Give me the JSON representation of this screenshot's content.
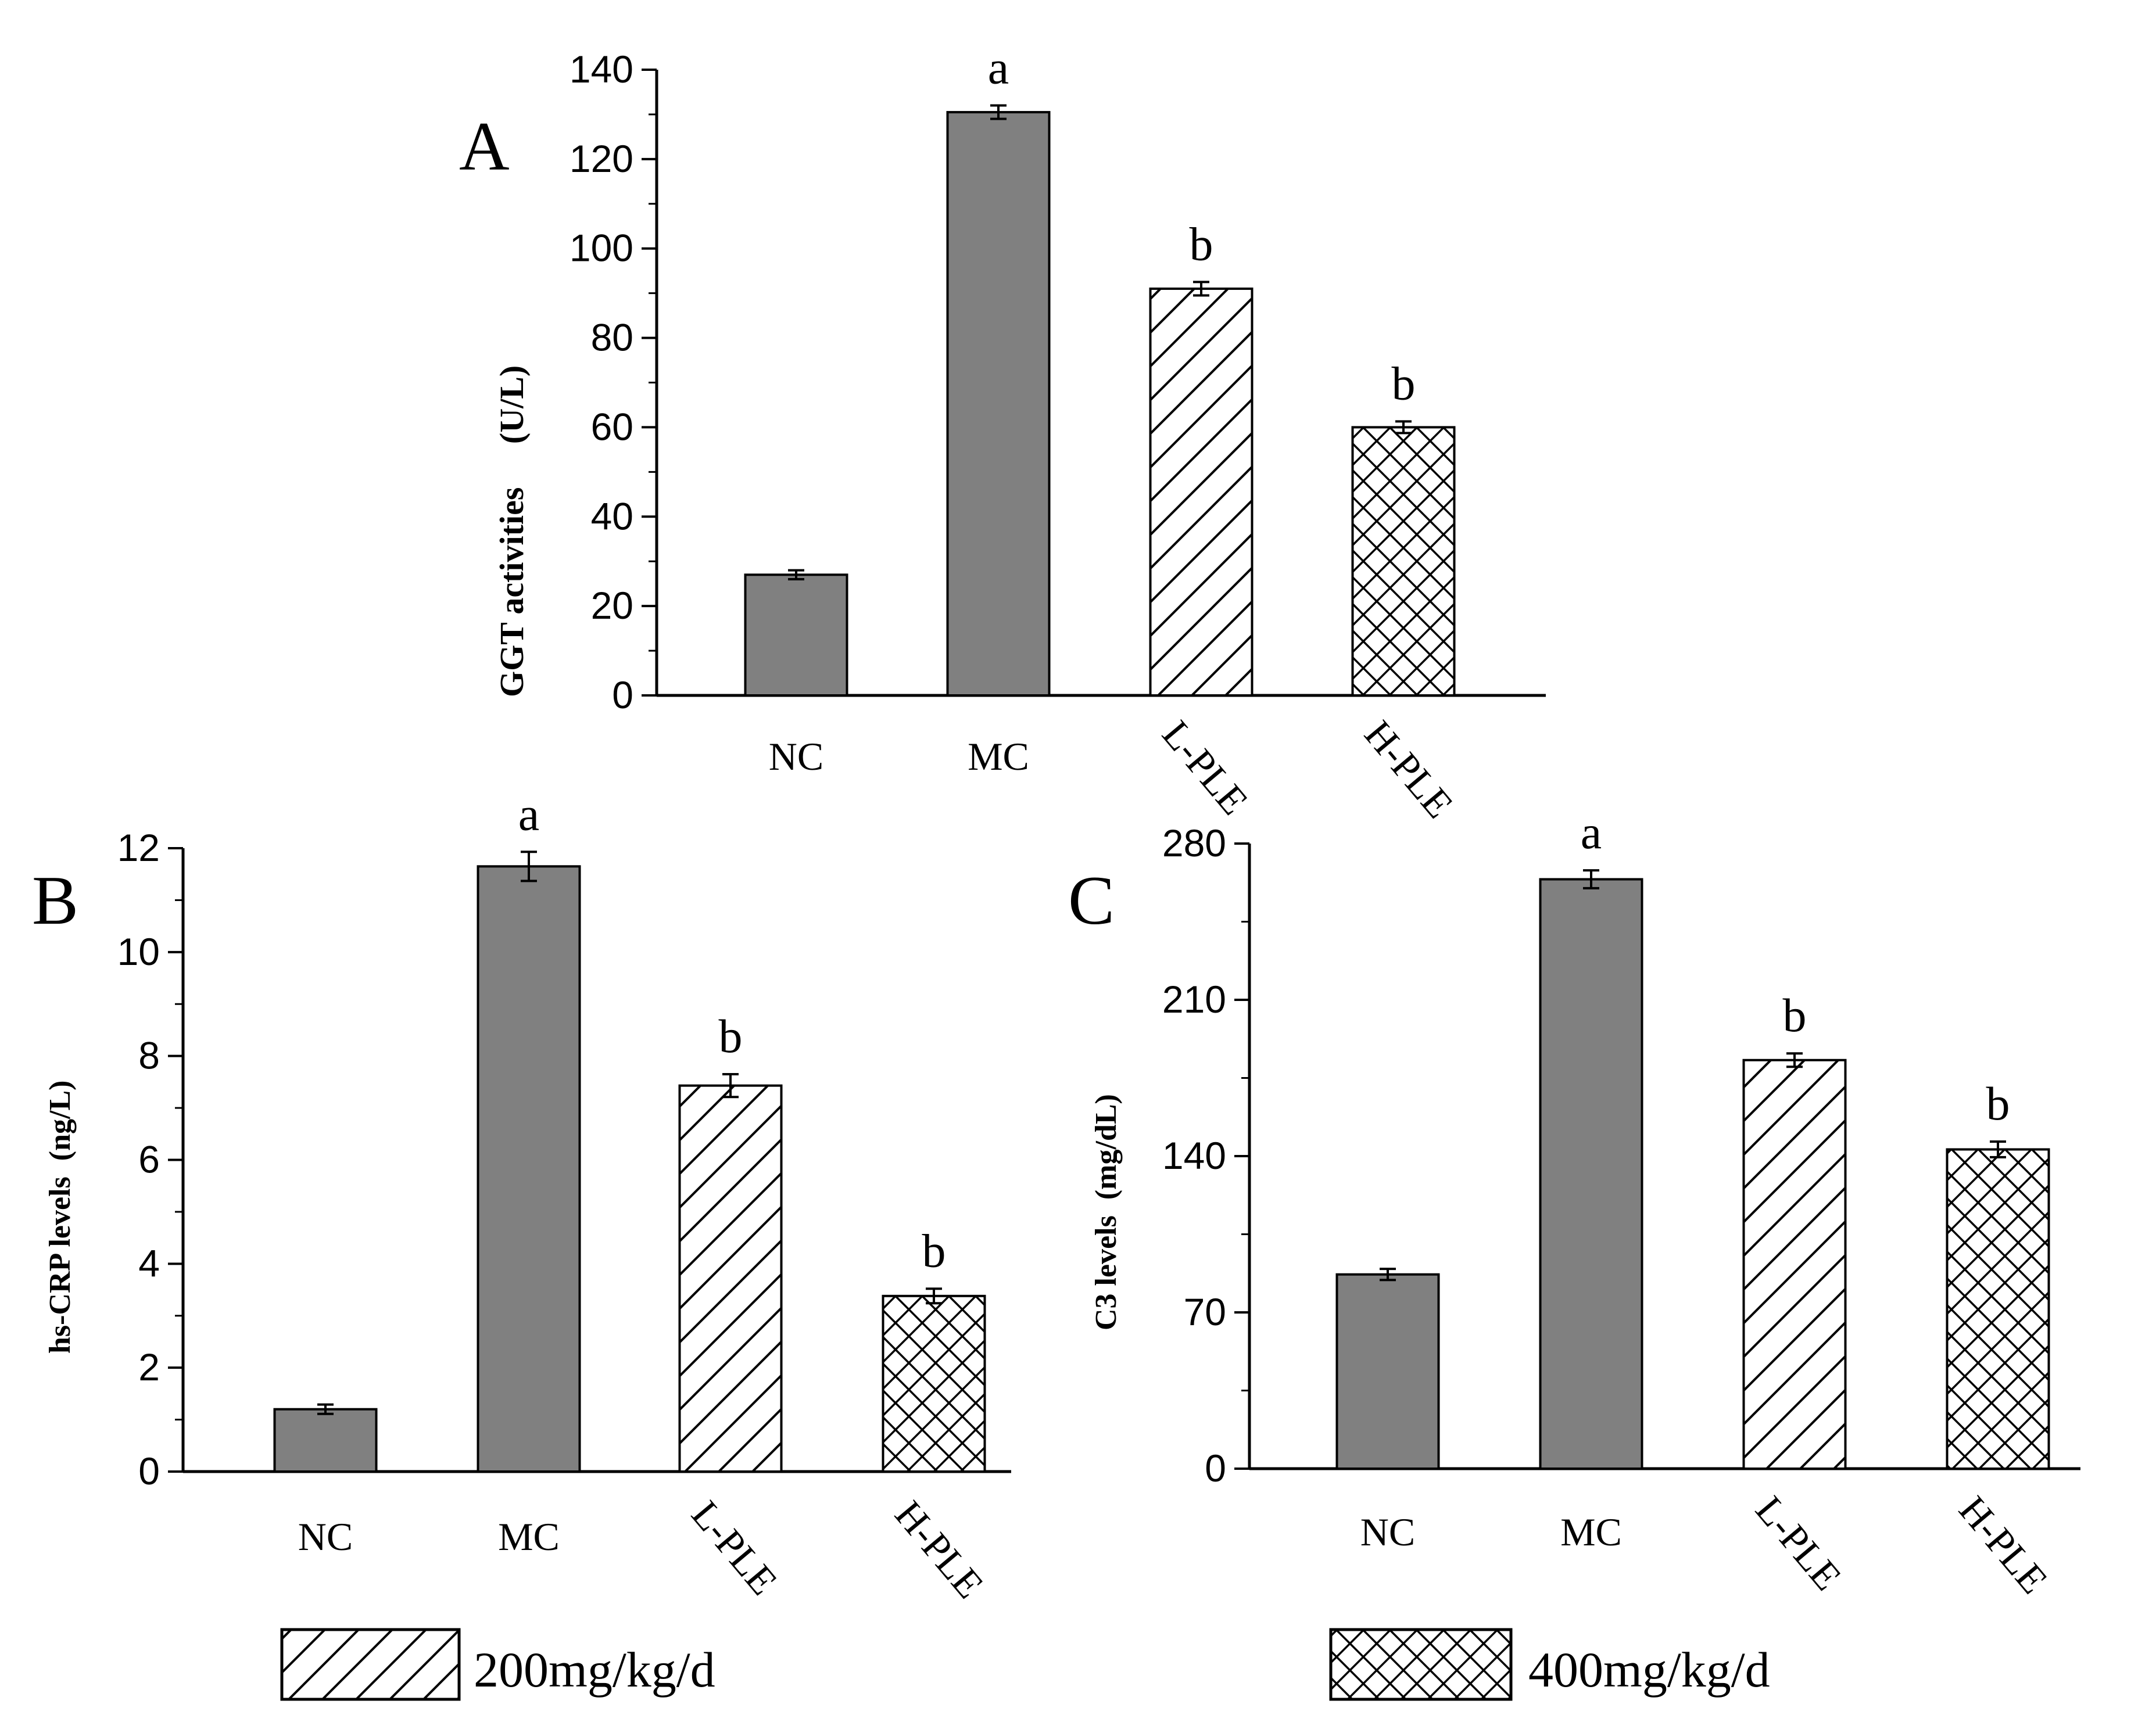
{
  "colors": {
    "bar_fill": "#808080",
    "stroke": "#000000",
    "background": "#ffffff",
    "hatch_fill": "#ffffff"
  },
  "legend": {
    "items": [
      {
        "pattern": "diagonal",
        "label": "200mg/kg/d"
      },
      {
        "pattern": "crosshatch",
        "label": "400mg/kg/d"
      }
    ]
  },
  "chart_data": [
    {
      "panel": "A",
      "type": "bar",
      "ylabel_main": "GGT activities",
      "ylabel_unit": "(U/L)",
      "categories": [
        "NC",
        "MC",
        "L-PLE",
        "H-PLE"
      ],
      "values": [
        27,
        130.5,
        91,
        60
      ],
      "errors": [
        1,
        1.5,
        1.5,
        1.3
      ],
      "patterns": [
        "solid",
        "solid",
        "diagonal",
        "crosshatch"
      ],
      "significance": [
        "",
        "a",
        "b",
        "b"
      ],
      "ylim": [
        0,
        140
      ],
      "yticks": [
        0,
        20,
        40,
        60,
        80,
        100,
        120,
        140
      ]
    },
    {
      "panel": "B",
      "type": "bar",
      "ylabel_main": "hs-CRP levels",
      "ylabel_unit": "(ng/L)",
      "categories": [
        "NC",
        "MC",
        "L-PLE",
        "H-PLE"
      ],
      "values": [
        1.2,
        11.65,
        7.43,
        3.38
      ],
      "errors": [
        0.09,
        0.28,
        0.22,
        0.14
      ],
      "patterns": [
        "solid",
        "solid",
        "diagonal",
        "crosshatch"
      ],
      "significance": [
        "",
        "a",
        "b",
        "b"
      ],
      "ylim": [
        0,
        12
      ],
      "yticks": [
        0,
        2,
        4,
        6,
        8,
        10,
        12
      ]
    },
    {
      "panel": "C",
      "type": "bar",
      "ylabel_main": "C3 levels",
      "ylabel_unit": "(mg/dL)",
      "categories": [
        "NC",
        "MC",
        "L-PLE",
        "H-PLE"
      ],
      "values": [
        87,
        264,
        183,
        143
      ],
      "errors": [
        2.5,
        4,
        3,
        3.5
      ],
      "patterns": [
        "solid",
        "solid",
        "diagonal",
        "crosshatch"
      ],
      "significance": [
        "",
        "a",
        "b",
        "b"
      ],
      "ylim": [
        0,
        280
      ],
      "yticks": [
        0,
        70,
        140,
        210,
        280
      ]
    }
  ]
}
